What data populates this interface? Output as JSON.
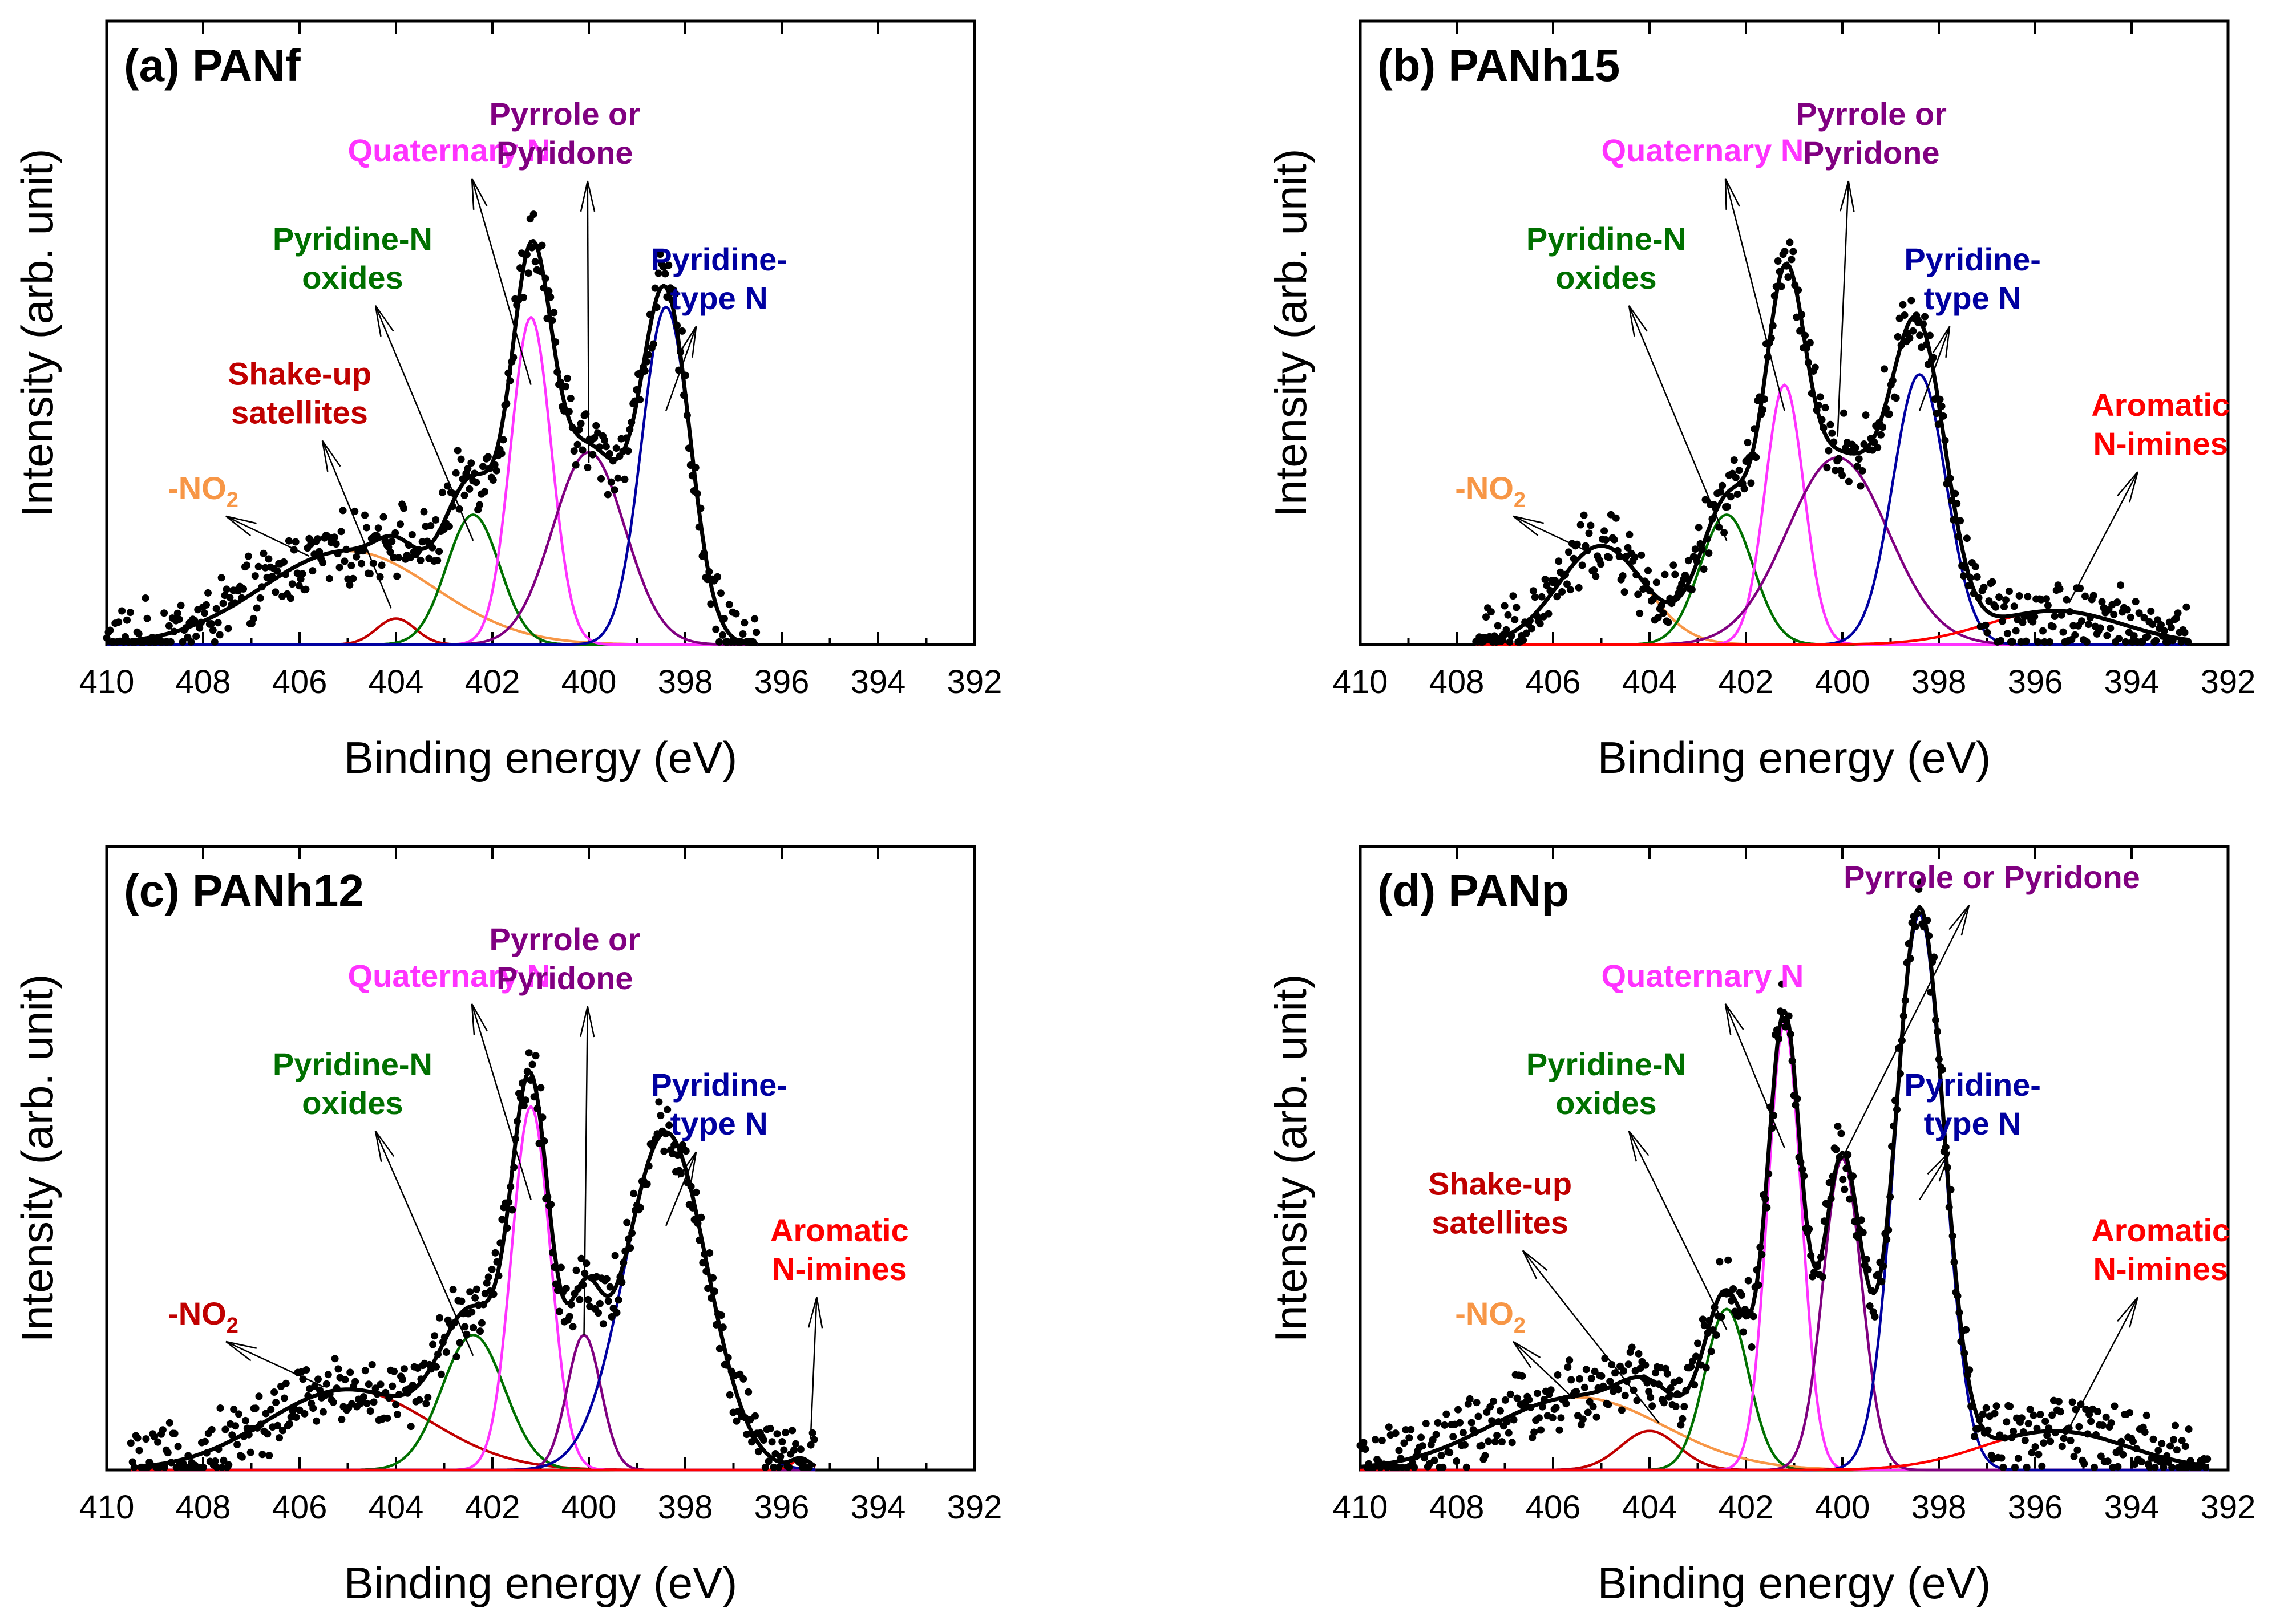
{
  "chart_data": [
    {
      "type": "line",
      "title": "(a) PANf",
      "xlabel": "Binding energy (eV)",
      "ylabel": "Intensity (arb. unit)",
      "xlim": [
        410,
        392
      ],
      "ylim": [
        0,
        1.2
      ],
      "x_ticks": [
        410,
        408,
        406,
        404,
        402,
        400,
        398,
        396,
        394,
        392
      ],
      "data_range": [
        410,
        396.5
      ],
      "series": [
        {
          "name": "-NO2",
          "color": "#F79646",
          "center": 405.0,
          "amplitude": 0.18,
          "sigma": 1.8
        },
        {
          "name": "Shake-up satellites",
          "color": "#C00000",
          "center": 404.0,
          "amplitude": 0.05,
          "sigma": 0.4
        },
        {
          "name": "Pyridine-N oxides",
          "color": "#007000",
          "center": 402.4,
          "amplitude": 0.25,
          "sigma": 0.55
        },
        {
          "name": "Quaternary N",
          "color": "#FF33FF",
          "center": 401.2,
          "amplitude": 0.63,
          "sigma": 0.42
        },
        {
          "name": "Pyrrole or Pyridone",
          "color": "#800080",
          "center": 400.0,
          "amplitude": 0.37,
          "sigma": 0.75
        },
        {
          "name": "Pyridine-type N",
          "color": "#0000A0",
          "center": 398.4,
          "amplitude": 0.65,
          "sigma": 0.5
        }
      ],
      "annotations": [
        {
          "text": "Quaternary N",
          "series": "Quaternary N",
          "label_x": 402.9,
          "label_y": 0.93,
          "target_x": 401.2,
          "target_y": 0.5
        },
        {
          "text": "Pyrrole or",
          "text2": "Pyridone",
          "series": "Pyrrole or Pyridone",
          "label_x": 400.5,
          "label_y": 1.0,
          "target_x": 400.0,
          "target_y": 0.35
        },
        {
          "text": "Pyridine-N",
          "text2": "oxides",
          "series": "Pyridine-N oxides",
          "label_x": 404.9,
          "label_y": 0.76,
          "target_x": 402.4,
          "target_y": 0.2
        },
        {
          "text": "Pyridine-",
          "text2": "type N",
          "series": "Pyridine-type N",
          "label_x": 397.3,
          "label_y": 0.72,
          "target_x": 398.4,
          "target_y": 0.45
        },
        {
          "text": "Shake-up",
          "text2": "satellites",
          "series": "Shake-up satellites",
          "label_x": 406.0,
          "label_y": 0.5,
          "target_x": 404.1,
          "target_y": 0.07
        },
        {
          "text": "-NO",
          "sub": "2",
          "series": "-NO2",
          "label_x": 408.0,
          "label_y": 0.28,
          "target_x": 405.8,
          "target_y": 0.17
        }
      ]
    },
    {
      "type": "line",
      "title": "(b) PANh15",
      "xlabel": "Binding energy (eV)",
      "ylabel": "Intensity (arb. unit)",
      "xlim": [
        410,
        392
      ],
      "ylim": [
        0,
        1.2
      ],
      "x_ticks": [
        410,
        408,
        406,
        404,
        402,
        400,
        398,
        396,
        394,
        392
      ],
      "data_range": [
        407.6,
        392.8
      ],
      "series": [
        {
          "name": "-NO2",
          "color": "#F79646",
          "center": 405.0,
          "amplitude": 0.19,
          "sigma": 0.9
        },
        {
          "name": "Pyridine-N oxides",
          "color": "#007000",
          "center": 402.4,
          "amplitude": 0.25,
          "sigma": 0.55
        },
        {
          "name": "Quaternary N",
          "color": "#FF33FF",
          "center": 401.2,
          "amplitude": 0.5,
          "sigma": 0.4
        },
        {
          "name": "Pyrrole or Pyridone",
          "color": "#800080",
          "center": 400.1,
          "amplitude": 0.36,
          "sigma": 1.05
        },
        {
          "name": "Pyridine-type N",
          "color": "#0000A0",
          "center": 398.4,
          "amplitude": 0.52,
          "sigma": 0.55
        },
        {
          "name": "Aromatic N-imines",
          "color": "#FF0000",
          "center": 395.6,
          "amplitude": 0.065,
          "sigma": 1.4
        }
      ],
      "annotations": [
        {
          "text": "Quaternary N",
          "series": "Quaternary N",
          "label_x": 402.9,
          "label_y": 0.93,
          "target_x": 401.2,
          "target_y": 0.45
        },
        {
          "text": "Pyrrole or",
          "text2": "Pyridone",
          "series": "Pyrrole or Pyridone",
          "label_x": 399.4,
          "label_y": 1.0,
          "target_x": 400.1,
          "target_y": 0.4
        },
        {
          "text": "Pyridine-N",
          "text2": "oxides",
          "series": "Pyridine-N oxides",
          "label_x": 404.9,
          "label_y": 0.76,
          "target_x": 402.4,
          "target_y": 0.2
        },
        {
          "text": "Pyridine-",
          "text2": "type N",
          "series": "Pyridine-type N",
          "label_x": 397.3,
          "label_y": 0.72,
          "target_x": 398.4,
          "target_y": 0.45
        },
        {
          "text": "Aromatic",
          "text2": "N-imines",
          "series": "Aromatic N-imines",
          "label_x": 393.4,
          "label_y": 0.44,
          "target_x": 395.3,
          "target_y": 0.08
        },
        {
          "text": "-NO",
          "sub": "2",
          "series": "-NO2",
          "label_x": 407.3,
          "label_y": 0.28,
          "target_x": 405.3,
          "target_y": 0.18
        }
      ]
    },
    {
      "type": "line",
      "title": "(c) PANh12",
      "xlabel": "Binding energy (eV)",
      "ylabel": "Intensity (arb. unit)",
      "xlim": [
        410,
        392
      ],
      "ylim": [
        0,
        1.2
      ],
      "x_ticks": [
        410,
        408,
        406,
        404,
        402,
        400,
        398,
        396,
        394,
        392
      ],
      "data_range": [
        409.5,
        395.3
      ],
      "series": [
        {
          "name": "-NO2",
          "color": "#C00000",
          "center": 405.0,
          "amplitude": 0.155,
          "sigma": 1.7
        },
        {
          "name": "Pyridine-N oxides",
          "color": "#007000",
          "center": 402.4,
          "amplitude": 0.26,
          "sigma": 0.65
        },
        {
          "name": "Quaternary N",
          "color": "#FF33FF",
          "center": 401.2,
          "amplitude": 0.7,
          "sigma": 0.4
        },
        {
          "name": "Pyrrole or Pyridone",
          "color": "#800080",
          "center": 400.1,
          "amplitude": 0.26,
          "sigma": 0.35
        },
        {
          "name": "Pyridine-type N",
          "color": "#0000A0",
          "center": 398.4,
          "amplitude": 0.65,
          "sigma": 0.85
        },
        {
          "name": "Aromatic N-imines",
          "color": "#FF0000",
          "center": 395.6,
          "amplitude": 0.02,
          "sigma": 0.2
        }
      ],
      "annotations": [
        {
          "text": "Quaternary N",
          "series": "Quaternary N",
          "label_x": 402.9,
          "label_y": 0.93,
          "target_x": 401.2,
          "target_y": 0.52
        },
        {
          "text": "Pyrrole or",
          "text2": "Pyridone",
          "series": "Pyrrole or Pyridone",
          "label_x": 400.5,
          "label_y": 1.0,
          "target_x": 400.1,
          "target_y": 0.26
        },
        {
          "text": "Pyridine-N",
          "text2": "oxides",
          "series": "Pyridine-N oxides",
          "label_x": 404.9,
          "label_y": 0.76,
          "target_x": 402.4,
          "target_y": 0.22
        },
        {
          "text": "Pyridine-",
          "text2": "type N",
          "series": "Pyridine-type N",
          "label_x": 397.3,
          "label_y": 0.72,
          "target_x": 398.4,
          "target_y": 0.47
        },
        {
          "text": "Aromatic",
          "text2": "N-imines",
          "series": "Aromatic N-imines",
          "label_x": 394.8,
          "label_y": 0.44,
          "target_x": 395.4,
          "target_y": 0.06
        },
        {
          "text": "-NO",
          "sub": "2",
          "series": "-NO2",
          "label_x": 408.0,
          "label_y": 0.28,
          "target_x": 405.5,
          "target_y": 0.16
        }
      ]
    },
    {
      "type": "line",
      "title": "(d) PANp",
      "xlabel": "Binding energy (eV)",
      "ylabel": "Intensity (arb. unit)",
      "xlim": [
        410,
        392
      ],
      "ylim": [
        0,
        1.2
      ],
      "x_ticks": [
        410,
        408,
        406,
        404,
        402,
        400,
        398,
        396,
        394,
        392
      ],
      "data_range": [
        410,
        392.4
      ],
      "series": [
        {
          "name": "-NO2",
          "color": "#F79646",
          "center": 405.5,
          "amplitude": 0.14,
          "sigma": 1.8
        },
        {
          "name": "Shake-up satellites",
          "color": "#C00000",
          "center": 404.0,
          "amplitude": 0.075,
          "sigma": 0.6
        },
        {
          "name": "Pyridine-N oxides",
          "color": "#007000",
          "center": 402.4,
          "amplitude": 0.31,
          "sigma": 0.45
        },
        {
          "name": "Quaternary N",
          "color": "#FF33FF",
          "center": 401.2,
          "amplitude": 0.86,
          "sigma": 0.35
        },
        {
          "name": "Pyrrole or Pyridone",
          "color": "#800080",
          "center": 400.0,
          "amplitude": 0.6,
          "sigma": 0.4
        },
        {
          "name": "Pyridine-type N",
          "color": "#0000A0",
          "center": 398.4,
          "amplitude": 1.07,
          "sigma": 0.5
        },
        {
          "name": "Aromatic N-imines",
          "color": "#FF0000",
          "center": 395.6,
          "amplitude": 0.075,
          "sigma": 1.5
        }
      ],
      "annotations": [
        {
          "text": "Quaternary N",
          "series": "Quaternary N",
          "label_x": 402.9,
          "label_y": 0.93,
          "target_x": 401.2,
          "target_y": 0.62
        },
        {
          "text": "Pyrrole or Pyridone",
          "series": "Pyrrole or Pyridone",
          "label_x": 396.9,
          "label_y": 1.12,
          "target_x": 400.0,
          "target_y": 0.6
        },
        {
          "text": "Pyridine-N",
          "text2": "oxides",
          "series": "Pyridine-N oxides",
          "label_x": 404.9,
          "label_y": 0.76,
          "target_x": 402.4,
          "target_y": 0.27
        },
        {
          "text": "Pyridine-",
          "text2": "type N",
          "series": "Pyridine-type N",
          "label_x": 397.3,
          "label_y": 0.72,
          "target_x": 398.4,
          "target_y": 0.52
        },
        {
          "text": "Shake-up",
          "text2": "satellites",
          "series": "Shake-up satellites",
          "label_x": 407.1,
          "label_y": 0.53,
          "target_x": 403.8,
          "target_y": 0.09
        },
        {
          "text": "Aromatic",
          "text2": "N-imines",
          "series": "Aromatic N-imines",
          "label_x": 393.4,
          "label_y": 0.44,
          "target_x": 395.3,
          "target_y": 0.08
        },
        {
          "text": "-NO",
          "sub": "2",
          "series": "-NO2",
          "label_x": 407.3,
          "label_y": 0.28,
          "target_x": 405.6,
          "target_y": 0.14
        }
      ]
    }
  ]
}
